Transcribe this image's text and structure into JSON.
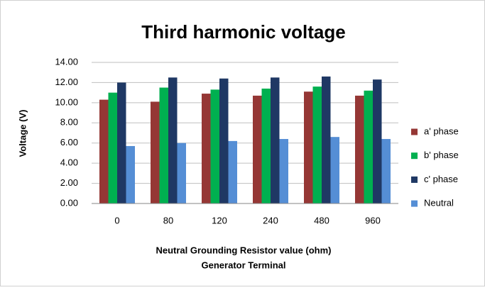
{
  "chart_data": {
    "type": "bar",
    "title": "Third harmonic voltage",
    "ylabel": "Voltage (V)",
    "xlabel_lines": [
      "Neutral Grounding Resistor value (ohm)",
      "Generator Terminal"
    ],
    "categories": [
      "0",
      "80",
      "120",
      "240",
      "480",
      "960"
    ],
    "series": [
      {
        "name": "a' phase",
        "color": "#953735",
        "values": [
          10.3,
          10.1,
          10.9,
          10.7,
          11.1,
          10.7
        ]
      },
      {
        "name": "b' phase",
        "color": "#00b050",
        "values": [
          11.0,
          11.5,
          11.3,
          11.4,
          11.6,
          11.2
        ]
      },
      {
        "name": "c' phase",
        "color": "#1f3864",
        "values": [
          12.0,
          12.5,
          12.4,
          12.5,
          12.6,
          12.3
        ]
      },
      {
        "name": "Neutral",
        "color": "#558ed5",
        "values": [
          5.7,
          6.0,
          6.2,
          6.4,
          6.6,
          6.4
        ]
      }
    ],
    "ylim": [
      0,
      14
    ],
    "yticks": [
      {
        "value": 0,
        "label": "0.00"
      },
      {
        "value": 2,
        "label": "2.00"
      },
      {
        "value": 4,
        "label": "4.00"
      },
      {
        "value": 6,
        "label": "6.00"
      },
      {
        "value": 8,
        "label": "8.00"
      },
      {
        "value": 10,
        "label": "10.00"
      },
      {
        "value": 12,
        "label": "12.00"
      },
      {
        "value": 14,
        "label": "14.00"
      }
    ],
    "grid": true,
    "legend": "right"
  }
}
